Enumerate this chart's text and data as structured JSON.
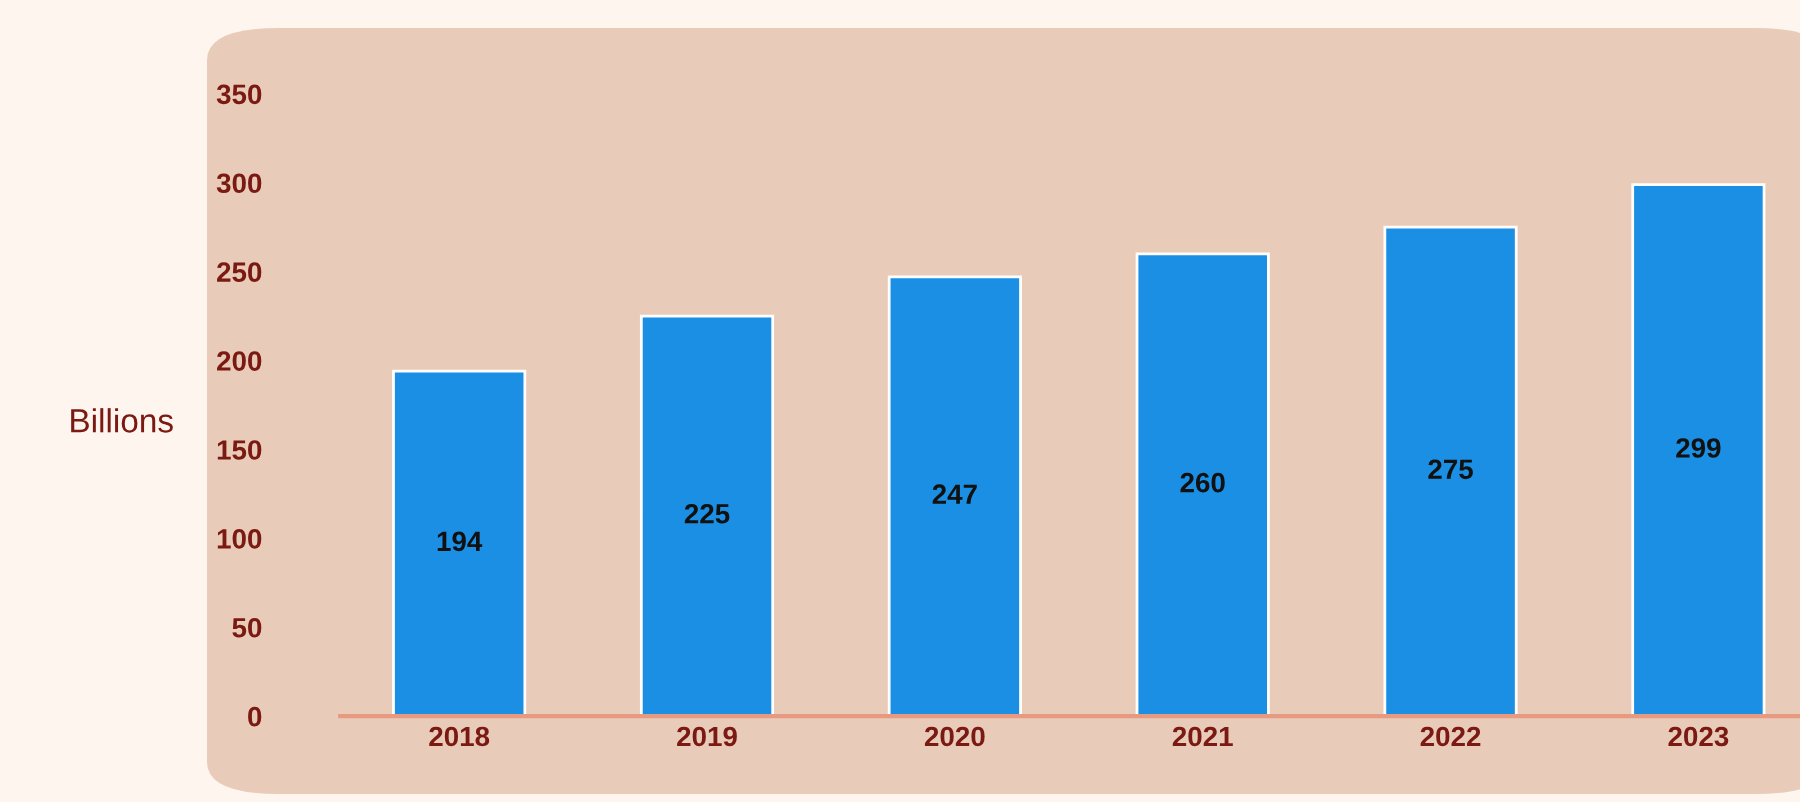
{
  "chart_data": {
    "type": "bar",
    "ylabel": "Billions",
    "categories": [
      "2018",
      "2019",
      "2020",
      "2021",
      "2022",
      "2023"
    ],
    "values": [
      194,
      225,
      247,
      260,
      275,
      299
    ],
    "color": "#1a8fe3",
    "ylim": [
      0,
      350
    ],
    "yticks": [
      0,
      50,
      100,
      150,
      200,
      250,
      300,
      350
    ],
    "data_labels": true,
    "grid": false,
    "legend": false
  }
}
